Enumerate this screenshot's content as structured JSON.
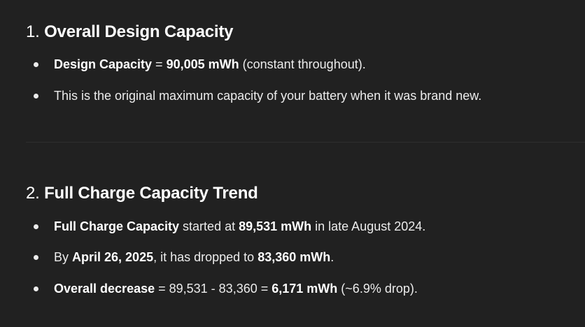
{
  "section1": {
    "number": "1.",
    "title": "Overall Design Capacity",
    "bullets": [
      {
        "label": "Design Capacity",
        "eq": " = ",
        "value": "90,005 mWh",
        "rest": " (constant throughout)."
      },
      {
        "text": "This is the original maximum capacity of your battery when it was brand new."
      }
    ]
  },
  "section2": {
    "number": "2.",
    "title": "Full Charge Capacity Trend",
    "bullets": [
      {
        "label": "Full Charge Capacity",
        "mid": " started at ",
        "value": "89,531 mWh",
        "rest": " in late August 2024."
      },
      {
        "pre": "By ",
        "date": "April 26, 2025",
        "mid": ", it has dropped to ",
        "value": "83,360 mWh",
        "rest": "."
      },
      {
        "label": "Overall decrease",
        "mid": " = 89,531 - 83,360 = ",
        "value": "6,171 mWh",
        "rest": " (~6.9% drop)."
      }
    ]
  }
}
